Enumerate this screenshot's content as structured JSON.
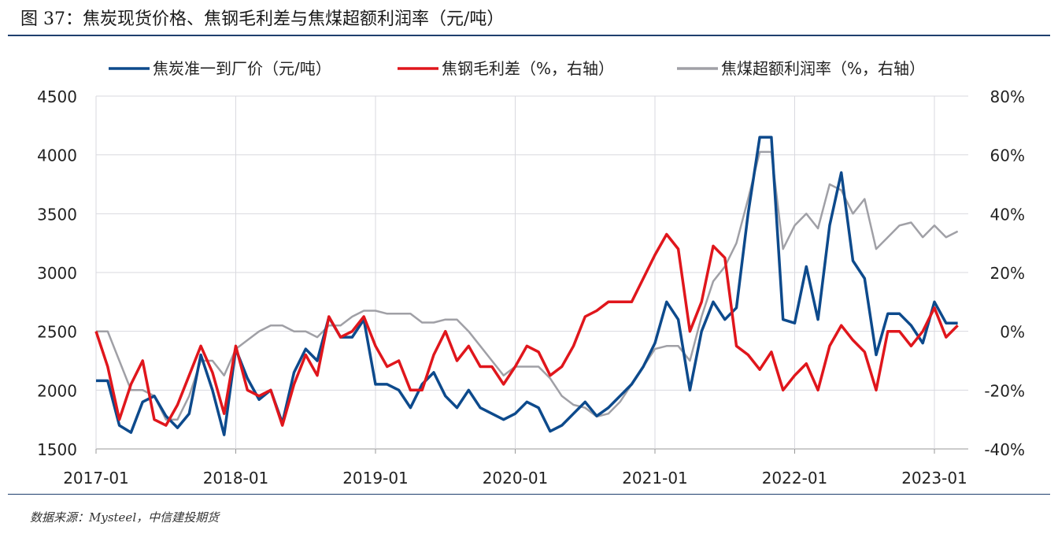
{
  "title": "图 37：焦炭现货价格、焦钢毛利差与焦煤超额利润率（元/吨）",
  "source": "数据来源：Mysteel，中信建投期货",
  "chart_data": {
    "type": "line",
    "title": "图 37：焦炭现货价格、焦钢毛利差与焦煤超额利润率（元/吨）",
    "x_ticks": [
      "2017-01",
      "2018-01",
      "2019-01",
      "2020-01",
      "2021-01",
      "2022-01",
      "2023-01"
    ],
    "y_left": {
      "range": [
        1500,
        4500
      ],
      "ticks": [
        "1500",
        "2000",
        "2500",
        "3000",
        "3500",
        "4000",
        "4500"
      ]
    },
    "y_right": {
      "range": [
        -40,
        80
      ],
      "ticks": [
        "-40%",
        "-20%",
        "0%",
        "20%",
        "40%",
        "60%",
        "80%"
      ]
    },
    "grid": true,
    "legend_position": "top",
    "dates": [
      "2017-01",
      "2017-02",
      "2017-03",
      "2017-04",
      "2017-05",
      "2017-06",
      "2017-07",
      "2017-08",
      "2017-09",
      "2017-10",
      "2017-11",
      "2017-12",
      "2018-01",
      "2018-02",
      "2018-03",
      "2018-04",
      "2018-05",
      "2018-06",
      "2018-07",
      "2018-08",
      "2018-09",
      "2018-10",
      "2018-11",
      "2018-12",
      "2019-01",
      "2019-02",
      "2019-03",
      "2019-04",
      "2019-05",
      "2019-06",
      "2019-07",
      "2019-08",
      "2019-09",
      "2019-10",
      "2019-11",
      "2019-12",
      "2020-01",
      "2020-02",
      "2020-03",
      "2020-04",
      "2020-05",
      "2020-06",
      "2020-07",
      "2020-08",
      "2020-09",
      "2020-10",
      "2020-11",
      "2020-12",
      "2021-01",
      "2021-02",
      "2021-03",
      "2021-04",
      "2021-05",
      "2021-06",
      "2021-07",
      "2021-08",
      "2021-09",
      "2021-10",
      "2021-11",
      "2021-12",
      "2022-01",
      "2022-02",
      "2022-03",
      "2022-04",
      "2022-05",
      "2022-06",
      "2022-07",
      "2022-08",
      "2022-09",
      "2022-10",
      "2022-11",
      "2022-12",
      "2023-01",
      "2023-02",
      "2023-03"
    ],
    "series": [
      {
        "name": "焦炭准一到厂价（元/吨）",
        "axis": "left",
        "color": "#0d4a8c",
        "values": [
          2080,
          2080,
          1700,
          1640,
          1900,
          1950,
          1780,
          1680,
          1800,
          2300,
          2000,
          1620,
          2350,
          2100,
          1920,
          2000,
          1720,
          2150,
          2350,
          2250,
          2620,
          2450,
          2450,
          2600,
          2050,
          2050,
          2000,
          1850,
          2050,
          2150,
          1950,
          1850,
          2000,
          1850,
          1800,
          1750,
          1800,
          1900,
          1850,
          1650,
          1700,
          1800,
          1900,
          1780,
          1850,
          1950,
          2050,
          2200,
          2400,
          2750,
          2600,
          2000,
          2500,
          2750,
          2600,
          2700,
          3500,
          4150,
          4150,
          2600,
          2570,
          3050,
          2600,
          3400,
          3850,
          3100,
          2950,
          2300,
          2650,
          2650,
          2550,
          2400,
          2750,
          2570,
          2570
        ]
      },
      {
        "name": "焦钢毛利差（%，右轴）",
        "axis": "right",
        "color": "#e0161c",
        "values": [
          0,
          -12,
          -30,
          -18,
          -10,
          -30,
          -32,
          -25,
          -15,
          -5,
          -14,
          -28,
          -5,
          -20,
          -22,
          -20,
          -32,
          -18,
          -8,
          -15,
          5,
          -2,
          0,
          5,
          -5,
          -12,
          -10,
          -20,
          -20,
          -8,
          0,
          -10,
          -5,
          -12,
          -12,
          -18,
          -12,
          -5,
          -7,
          -15,
          -12,
          -5,
          5,
          7,
          10,
          10,
          10,
          18,
          26,
          33,
          28,
          0,
          10,
          29,
          25,
          -5,
          -8,
          -13,
          -7,
          -20,
          -15,
          -11,
          -20,
          -5,
          2,
          -3,
          -7,
          -20,
          0,
          0,
          -5,
          0,
          8,
          -2,
          2
        ]
      },
      {
        "name": "焦煤超额利润率（%，右轴）",
        "axis": "right",
        "color": "#a0a0a6",
        "values": [
          0,
          0,
          -10,
          -20,
          -20,
          -22,
          -30,
          -30,
          -22,
          -10,
          -10,
          -15,
          -6,
          -3,
          0,
          2,
          2,
          0,
          0,
          -2,
          2,
          2,
          5,
          7,
          7,
          6,
          6,
          6,
          3,
          3,
          4,
          4,
          0,
          -5,
          -10,
          -15,
          -12,
          -12,
          -12,
          -16,
          -22,
          -25,
          -26,
          -29,
          -28,
          -24,
          -18,
          -12,
          -6,
          -5,
          -5,
          -10,
          5,
          17,
          22,
          30,
          45,
          61,
          61,
          28,
          36,
          40,
          35,
          50,
          48,
          40,
          45,
          28,
          32,
          36,
          37,
          32,
          36,
          32,
          34
        ]
      }
    ]
  }
}
